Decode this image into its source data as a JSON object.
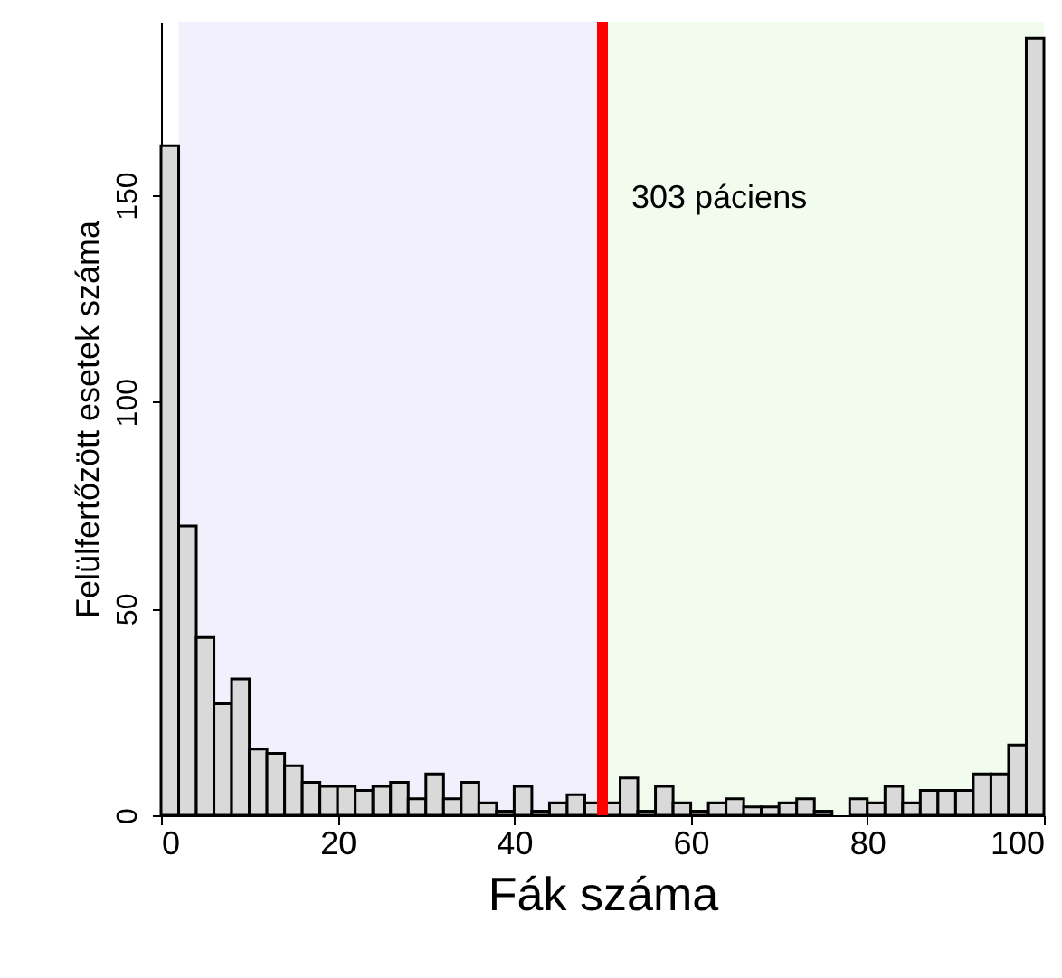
{
  "chart_data": {
    "type": "histogram",
    "xlabel": "Fák száma",
    "ylabel": "Felülfertőzött esetek száma",
    "color": "#d9d9d9",
    "bins": [
      0,
      2,
      4,
      6,
      8,
      10,
      12,
      14,
      16,
      18,
      20,
      22,
      24,
      26,
      28,
      30,
      32,
      34,
      36,
      38,
      40,
      42,
      44,
      46,
      48,
      50,
      52,
      54,
      56,
      58,
      60,
      62,
      64,
      66,
      68,
      70,
      72,
      74,
      76,
      78,
      80,
      82,
      84,
      86,
      88,
      90,
      92,
      94,
      96,
      98,
      100
    ],
    "values": [
      162,
      70,
      43,
      27,
      33,
      16,
      15,
      12,
      8,
      7,
      7,
      6,
      7,
      8,
      4,
      10,
      4,
      8,
      3,
      1,
      7,
      1,
      3,
      5,
      3,
      3,
      9,
      1,
      7,
      3,
      1,
      3,
      4,
      2,
      2,
      3,
      4,
      1,
      0,
      4,
      3,
      7,
      3,
      6,
      6,
      6,
      10,
      10,
      17,
      188
    ],
    "xlim": [
      0,
      100
    ],
    "xticks": [
      0,
      20,
      40,
      60,
      80,
      100
    ],
    "ylim": [
      0,
      192
    ],
    "yticks": [
      0,
      50,
      100,
      150
    ],
    "grid": false,
    "bands": [
      {
        "axis": "x",
        "from": 2,
        "to": 50,
        "color": "#f3f0fe"
      },
      {
        "axis": "x",
        "from": 50,
        "to": 100,
        "color": "#f1fcee"
      }
    ],
    "ref_lines": [
      {
        "axis": "x",
        "value": 50,
        "color": "#ff0000"
      }
    ],
    "annotations": [
      "303 páciens"
    ]
  }
}
